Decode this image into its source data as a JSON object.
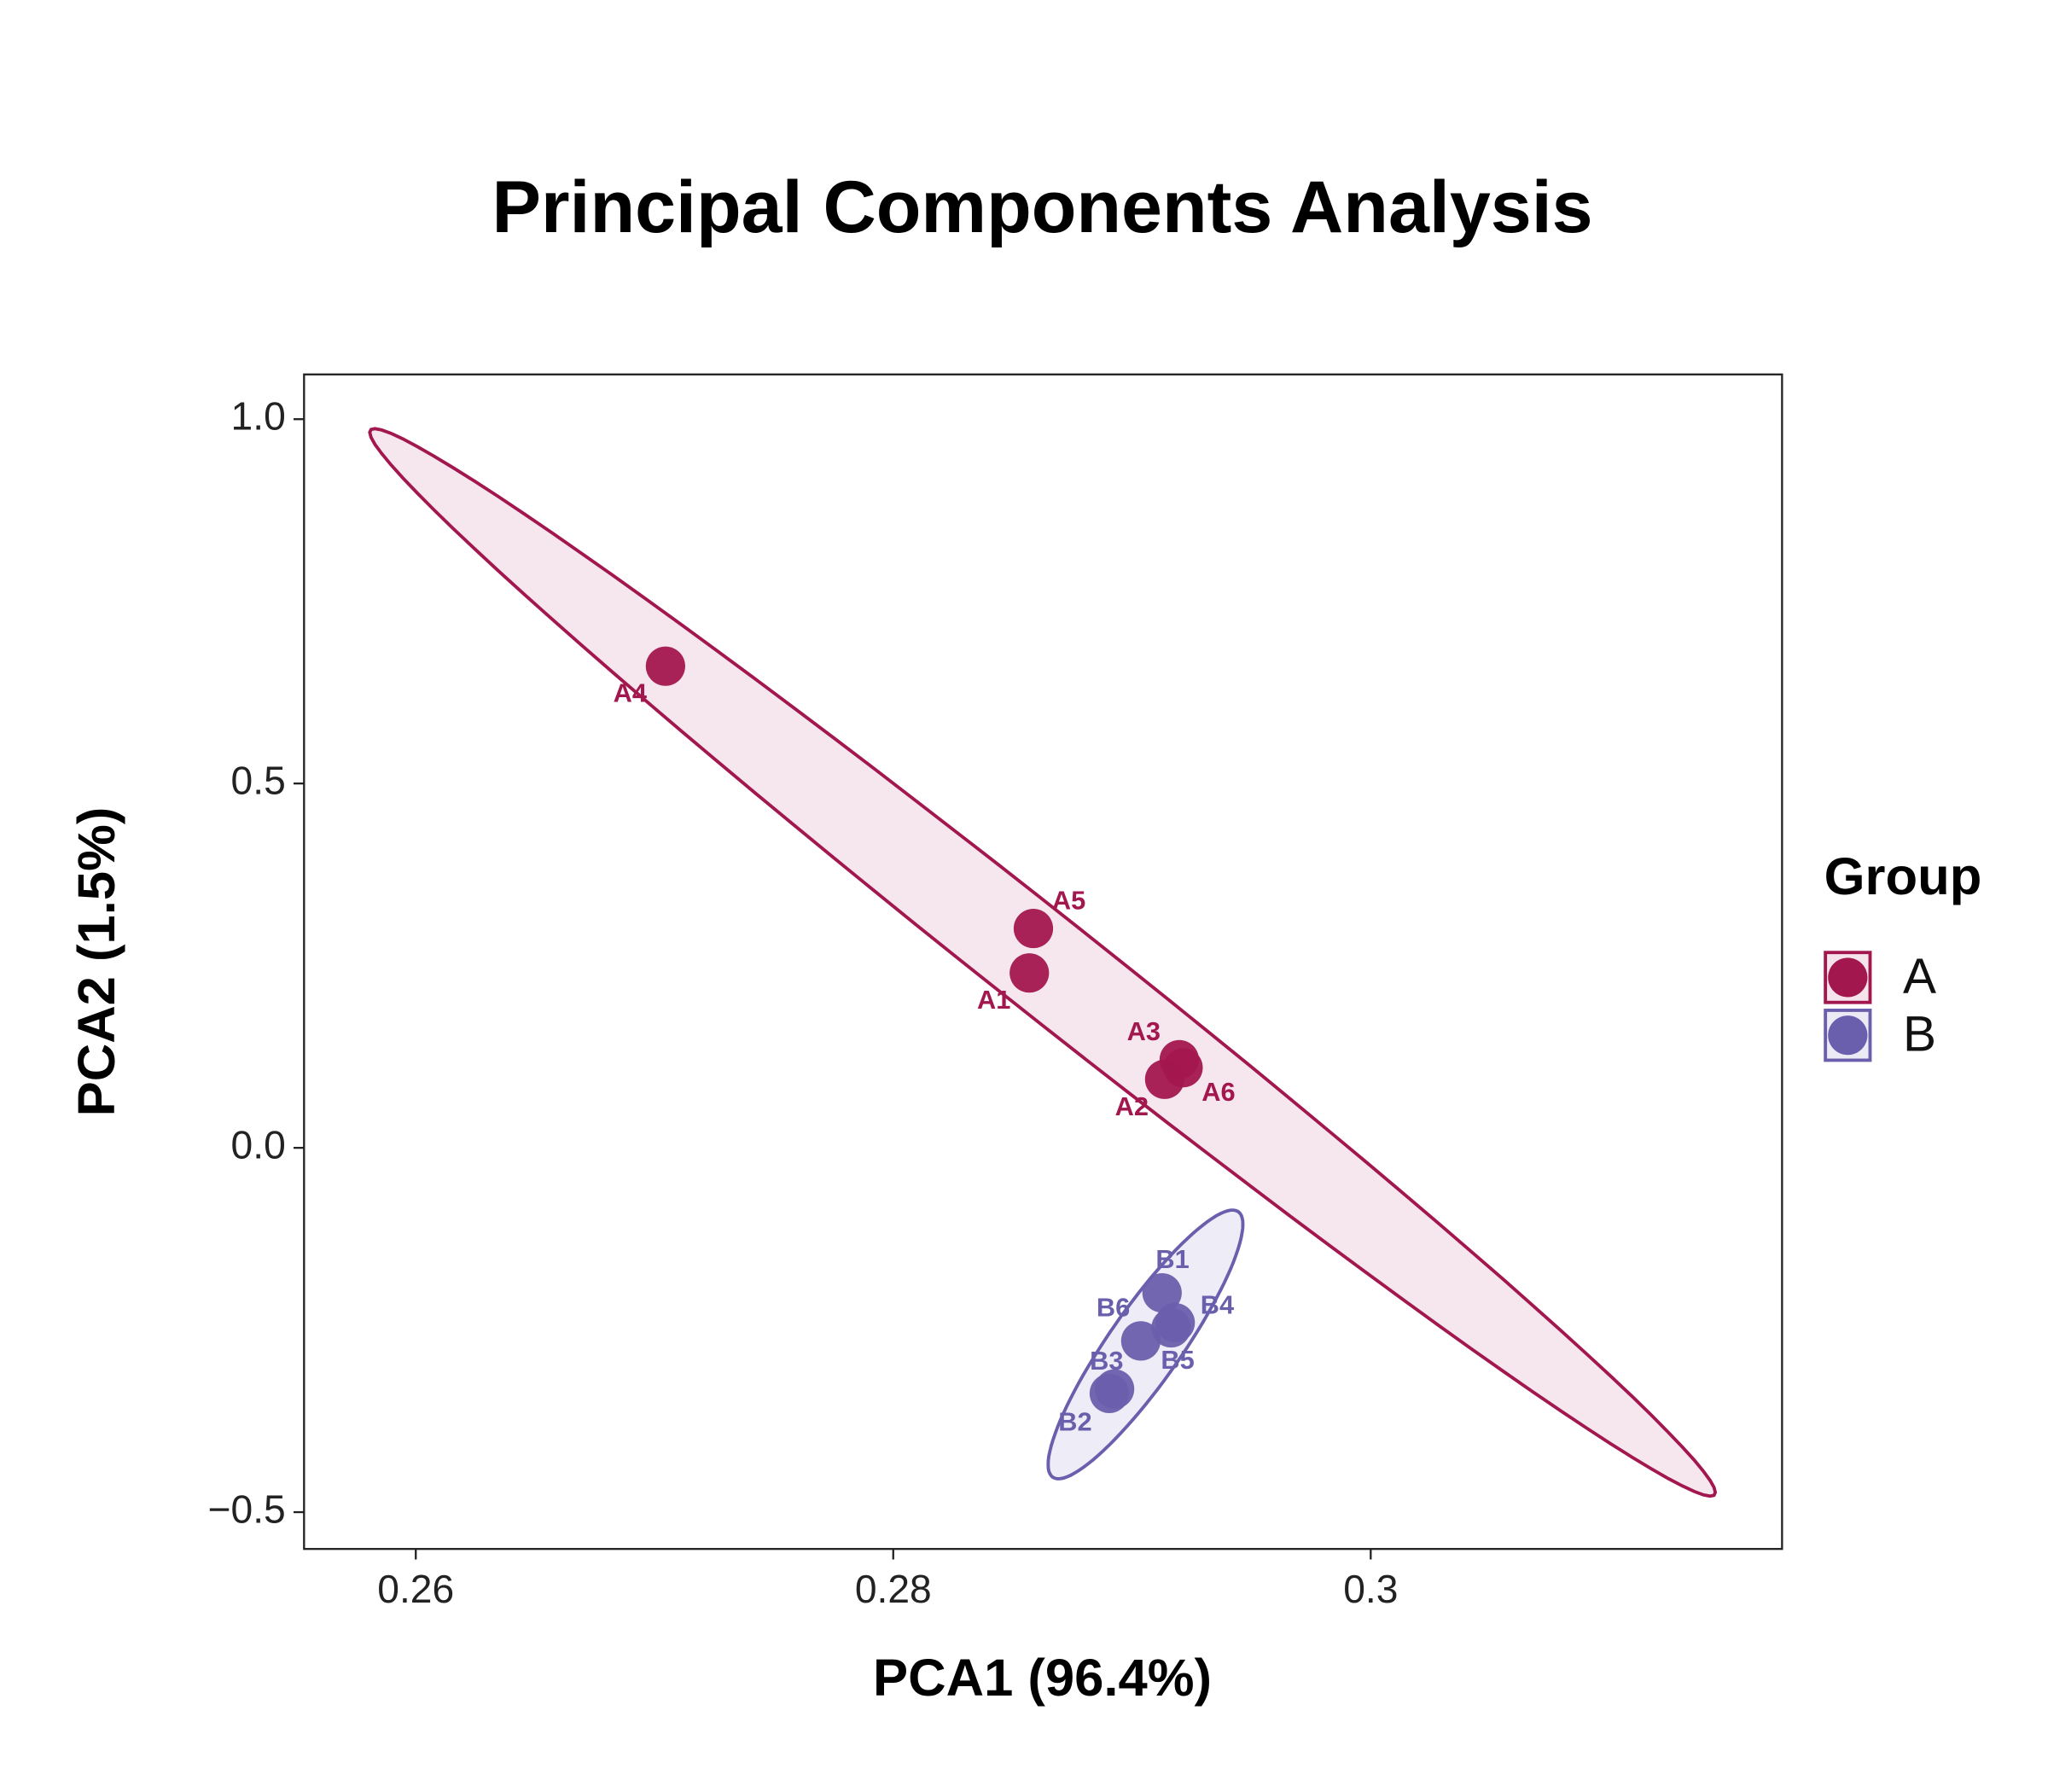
{
  "chart_data": {
    "type": "scatter",
    "title": "Principal Components Analysis",
    "x_label": "PCA1 (96.4%)",
    "y_label": "PCA2 (1.5%)",
    "legend_title": "Group",
    "xlim": [
      0.25532,
      0.31723
    ],
    "ylim": [
      -0.5505,
      1.0614
    ],
    "xticks": [
      0.26,
      0.28,
      0.3
    ],
    "yticks": [
      {
        "value": -0.5,
        "label": "−0.5"
      },
      {
        "value": 0,
        "label": "0.0"
      },
      {
        "value": 0.5,
        "label": "0.5"
      },
      {
        "value": 1,
        "label": "1.0"
      }
    ],
    "legend_position": "right",
    "series": [
      {
        "name": "A",
        "color": "#a3174f",
        "fill": "#f5e4ec",
        "labels": [
          "A1",
          "A2",
          "A3",
          "A4",
          "A5",
          "A6"
        ],
        "x": [
          0.2857,
          0.29137,
          0.29198,
          0.27046,
          0.28587,
          0.29214
        ],
        "y": [
          0.24,
          0.094,
          0.121,
          0.661,
          0.301,
          0.11
        ]
      },
      {
        "name": "B",
        "color": "#6a5fad",
        "fill": "#eceaf5",
        "labels": [
          "B1",
          "B2",
          "B3",
          "B4",
          "B5",
          "B6"
        ],
        "x": [
          0.29126,
          0.28905,
          0.28927,
          0.29181,
          0.29164,
          0.29037
        ],
        "y": [
          -0.199,
          -0.337,
          -0.331,
          -0.24,
          -0.247,
          -0.265
        ]
      }
    ]
  }
}
